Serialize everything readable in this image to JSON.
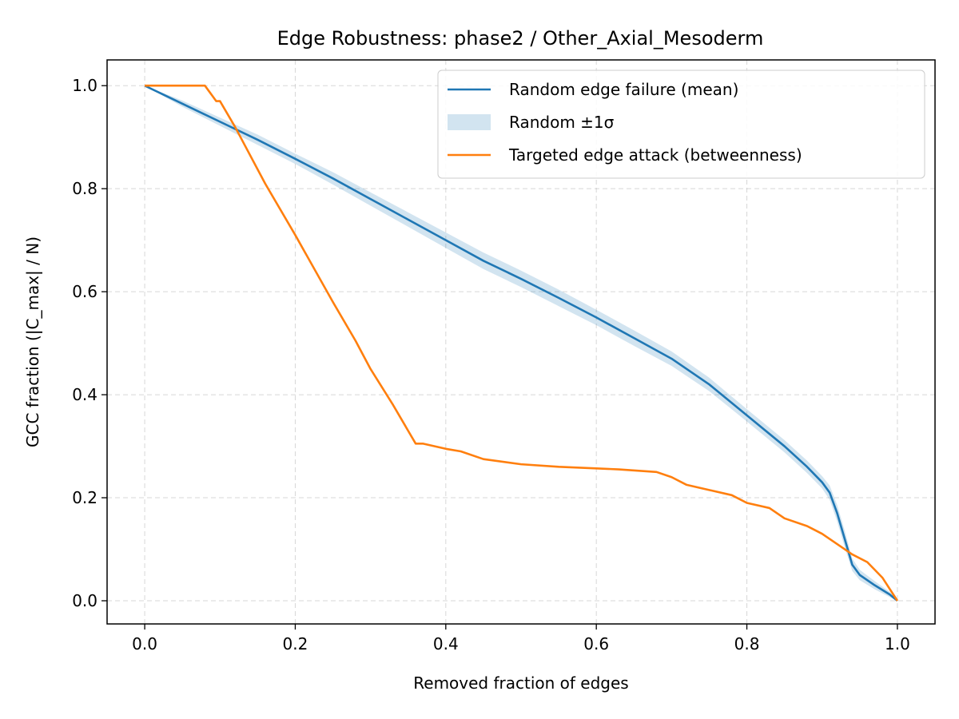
{
  "chart_data": {
    "type": "line",
    "title": "Edge Robustness: phase2 / Other_Axial_Mesoderm",
    "xlabel": "Removed fraction of edges",
    "ylabel": "GCC fraction (|C_max| / N)",
    "xlim": [
      -0.05,
      1.05
    ],
    "ylim": [
      -0.045,
      1.05
    ],
    "xticks": [
      0.0,
      0.2,
      0.4,
      0.6,
      0.8,
      1.0
    ],
    "xtick_labels": [
      "0.0",
      "0.2",
      "0.4",
      "0.6",
      "0.8",
      "1.0"
    ],
    "yticks": [
      0.0,
      0.2,
      0.4,
      0.6,
      0.8,
      1.0
    ],
    "ytick_labels": [
      "0.0",
      "0.2",
      "0.4",
      "0.6",
      "0.8",
      "1.0"
    ],
    "grid": true,
    "legend_position": "upper right",
    "legend": [
      {
        "label": "Random edge failure (mean)",
        "kind": "line",
        "color": "#1f77b4"
      },
      {
        "label": "Random ±1σ",
        "kind": "band",
        "color": "#1f77b4"
      },
      {
        "label": "Targeted edge attack (betweenness)",
        "kind": "line",
        "color": "#ff7f0e"
      }
    ],
    "series": [
      {
        "name": "Random edge failure (mean)",
        "color": "#1f77b4",
        "x": [
          0.0,
          0.05,
          0.1,
          0.15,
          0.2,
          0.25,
          0.3,
          0.35,
          0.4,
          0.45,
          0.5,
          0.55,
          0.6,
          0.65,
          0.7,
          0.75,
          0.8,
          0.85,
          0.88,
          0.9,
          0.91,
          0.92,
          0.93,
          0.94,
          0.95,
          0.97,
          0.99,
          1.0
        ],
        "y": [
          1.0,
          0.965,
          0.93,
          0.895,
          0.858,
          0.82,
          0.78,
          0.74,
          0.7,
          0.66,
          0.625,
          0.588,
          0.55,
          0.51,
          0.47,
          0.42,
          0.36,
          0.3,
          0.26,
          0.23,
          0.21,
          0.17,
          0.12,
          0.07,
          0.05,
          0.03,
          0.012,
          0.0
        ],
        "band_sigma": [
          0.0,
          0.006,
          0.008,
          0.01,
          0.01,
          0.012,
          0.013,
          0.014,
          0.015,
          0.016,
          0.016,
          0.016,
          0.015,
          0.015,
          0.014,
          0.013,
          0.012,
          0.012,
          0.012,
          0.012,
          0.014,
          0.016,
          0.016,
          0.012,
          0.01,
          0.008,
          0.005,
          0.0
        ]
      },
      {
        "name": "Targeted edge attack (betweenness)",
        "color": "#ff7f0e",
        "x": [
          0.0,
          0.08,
          0.085,
          0.09,
          0.095,
          0.1,
          0.12,
          0.16,
          0.2,
          0.25,
          0.28,
          0.3,
          0.33,
          0.35,
          0.36,
          0.37,
          0.4,
          0.42,
          0.45,
          0.5,
          0.55,
          0.6,
          0.63,
          0.68,
          0.7,
          0.72,
          0.75,
          0.78,
          0.8,
          0.83,
          0.85,
          0.88,
          0.9,
          0.92,
          0.94,
          0.96,
          0.98,
          1.0
        ],
        "y": [
          1.0,
          1.0,
          0.99,
          0.98,
          0.97,
          0.97,
          0.92,
          0.81,
          0.71,
          0.58,
          0.505,
          0.45,
          0.38,
          0.33,
          0.305,
          0.305,
          0.295,
          0.29,
          0.275,
          0.265,
          0.26,
          0.257,
          0.255,
          0.25,
          0.24,
          0.225,
          0.215,
          0.205,
          0.19,
          0.18,
          0.16,
          0.145,
          0.13,
          0.11,
          0.09,
          0.075,
          0.045,
          0.0
        ]
      }
    ]
  }
}
